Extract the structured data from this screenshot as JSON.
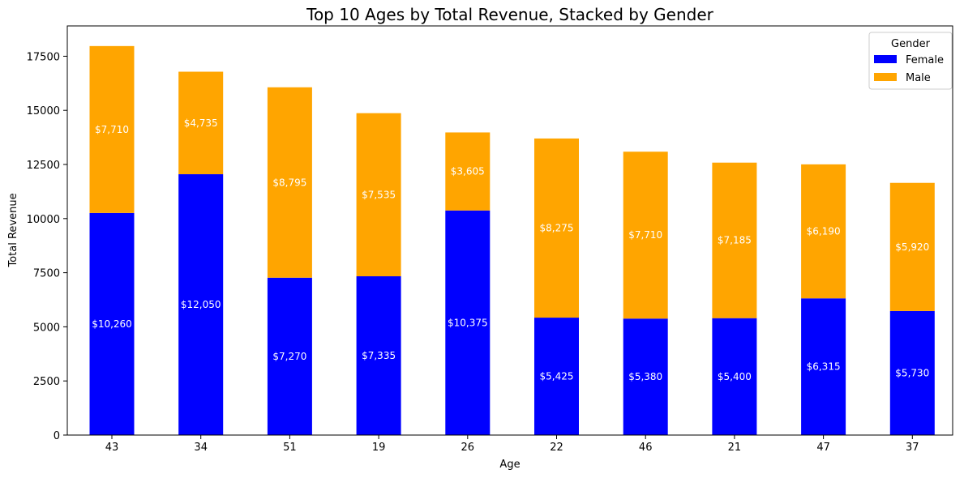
{
  "chart_data": {
    "type": "bar",
    "stacked": true,
    "title": "Top 10 Ages by Total Revenue, Stacked by Gender",
    "xlabel": "Age",
    "ylabel": "Total Revenue",
    "ylim": [
      0,
      18900
    ],
    "yticks": [
      0,
      2500,
      5000,
      7500,
      10000,
      12500,
      15000,
      17500
    ],
    "categories": [
      "43",
      "34",
      "51",
      "19",
      "26",
      "22",
      "46",
      "21",
      "47",
      "37"
    ],
    "series": [
      {
        "name": "Female",
        "color": "#0000ff",
        "values": [
          10260,
          12050,
          7270,
          7335,
          10375,
          5425,
          5380,
          5400,
          6315,
          5730
        ],
        "labels": [
          "$10,260",
          "$12,050",
          "$7,270",
          "$7,335",
          "$10,375",
          "$5,425",
          "$5,380",
          "$5,400",
          "$6,315",
          "$5,730"
        ]
      },
      {
        "name": "Male",
        "color": "#ffa500",
        "values": [
          7710,
          4735,
          8795,
          7535,
          3605,
          8275,
          7710,
          7185,
          6190,
          5920
        ],
        "labels": [
          "$7,710",
          "$4,735",
          "$8,795",
          "$7,535",
          "$3,605",
          "$8,275",
          "$7,710",
          "$7,185",
          "$6,190",
          "$5,920"
        ]
      }
    ],
    "legend": {
      "title": "Gender",
      "position": "top-right"
    },
    "grid": false
  }
}
